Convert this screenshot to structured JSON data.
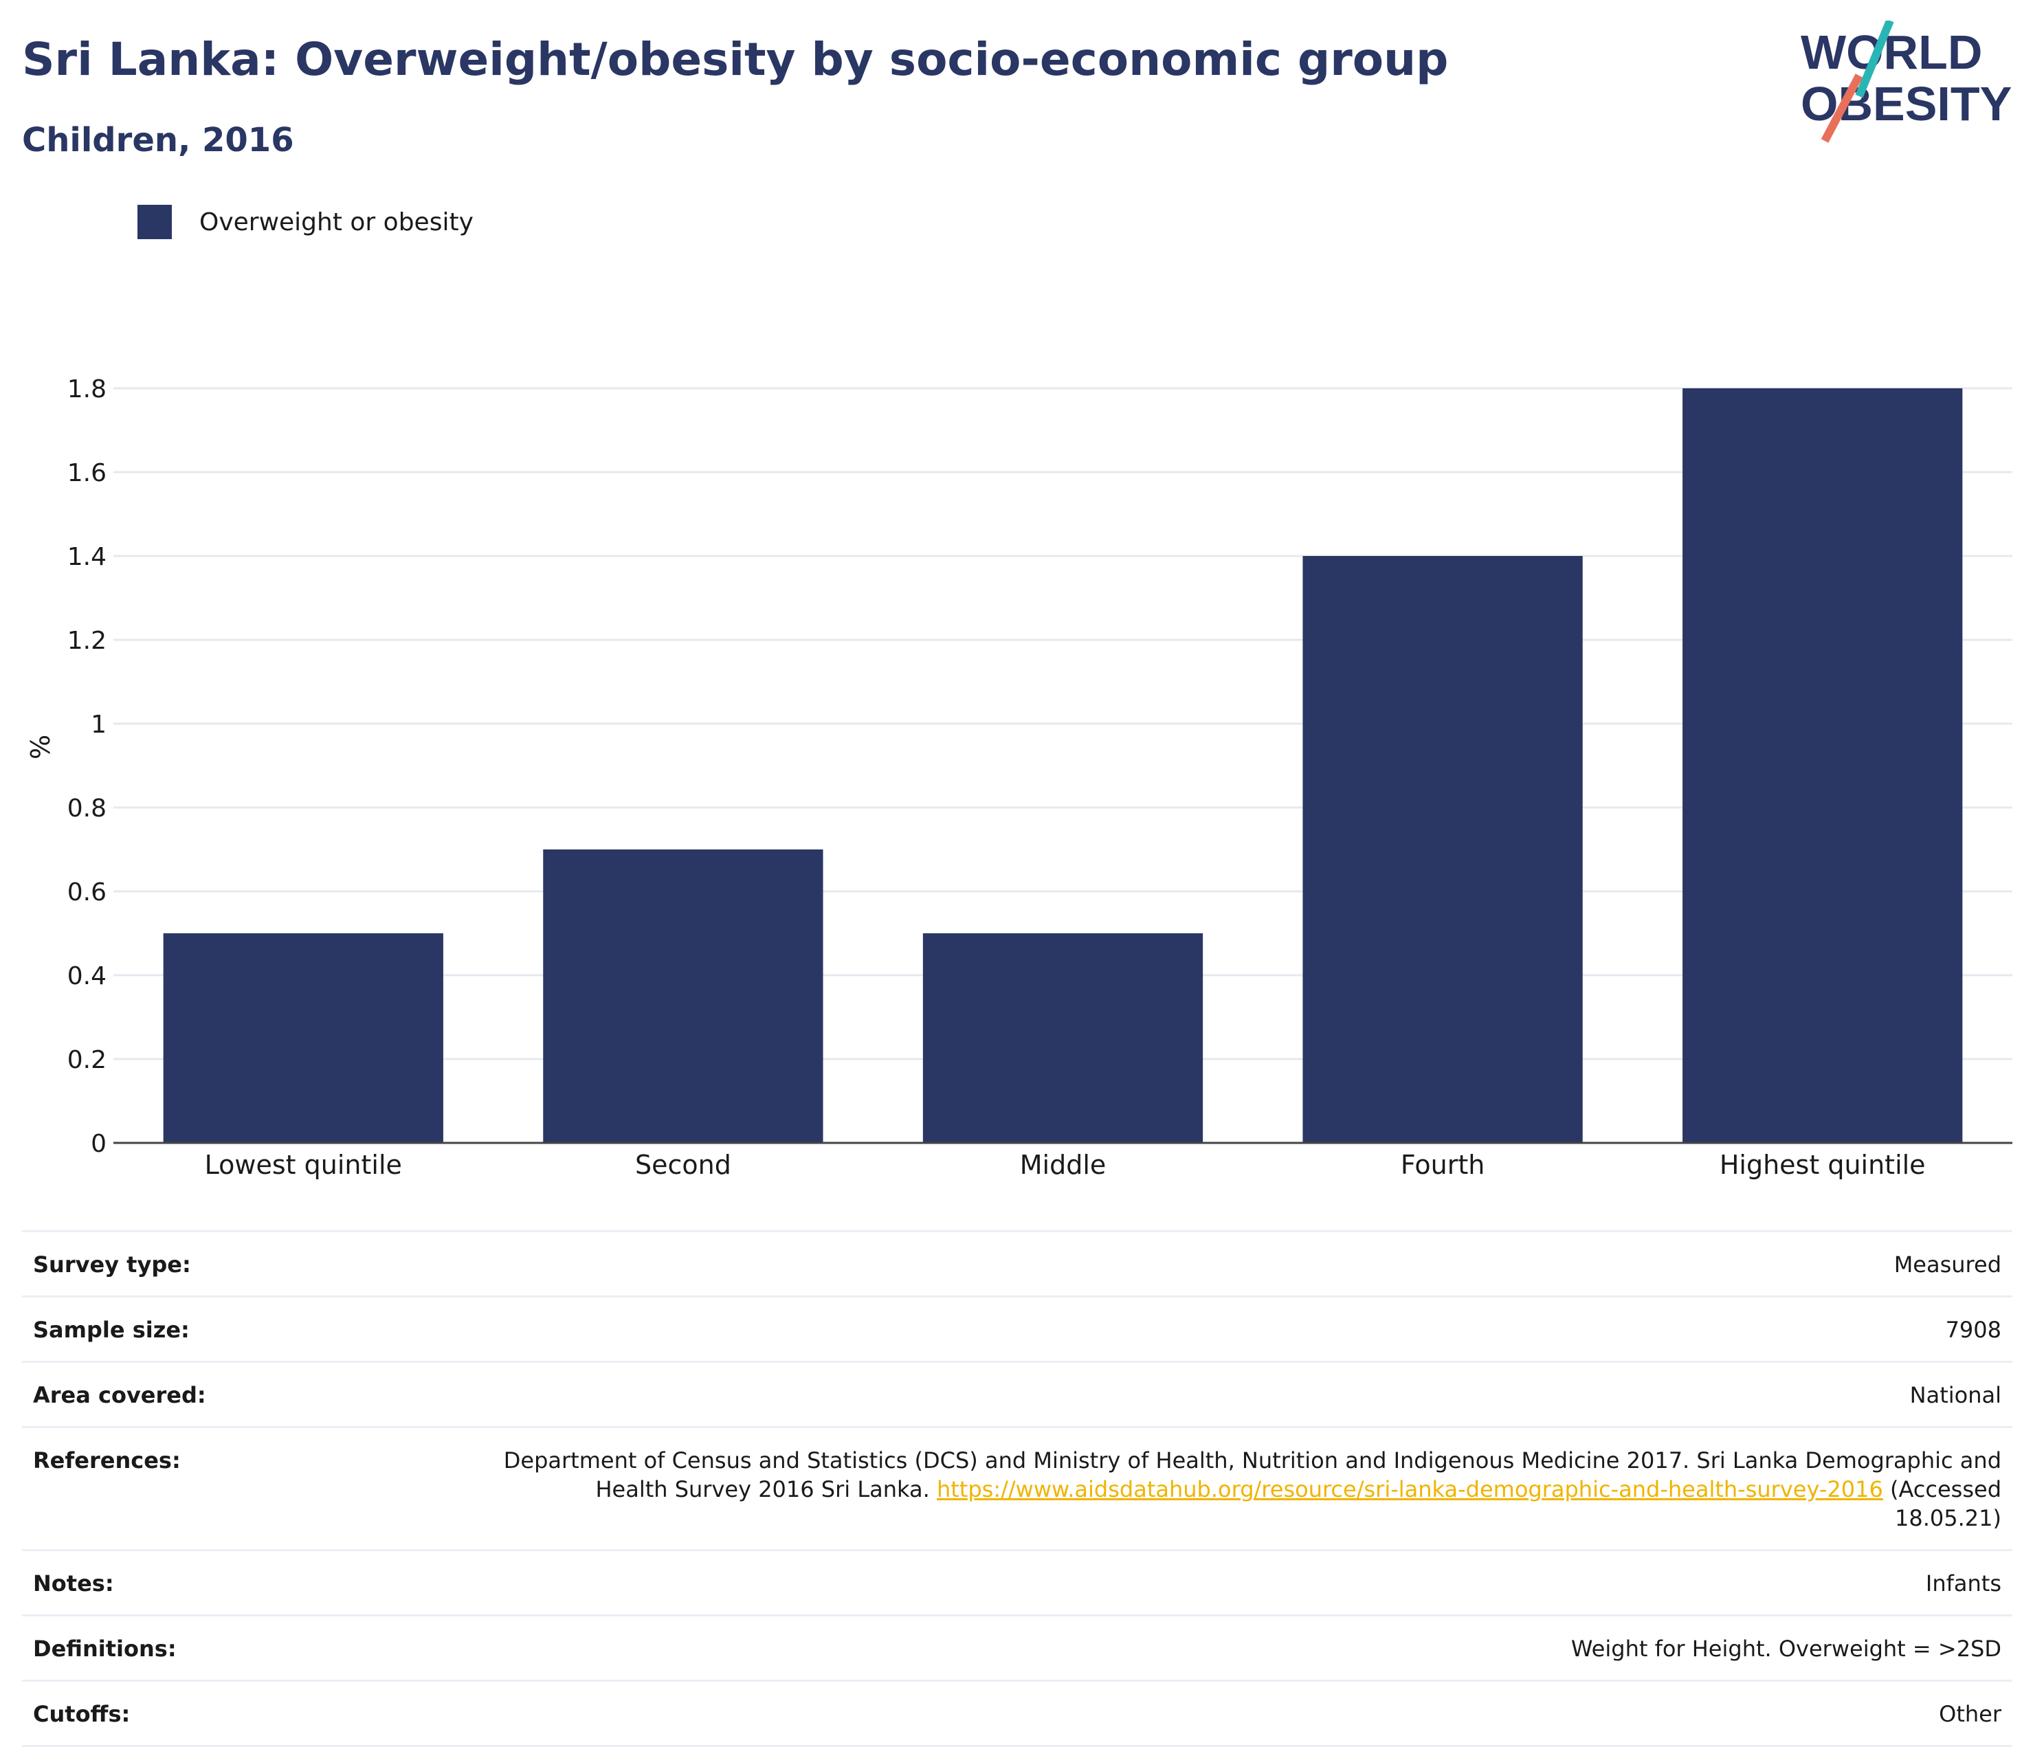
{
  "title": "Sri Lanka: Overweight/obesity by socio-economic group",
  "subtitle": "Children, 2016",
  "logo": {
    "line1": "WORLD",
    "line2": "OBESITY"
  },
  "colors": {
    "bar": "#2a3663",
    "title": "#2a3663",
    "link": "#f0b400",
    "logo_teal": "#2ab5b5",
    "logo_coral": "#e8705a"
  },
  "legend": {
    "items": [
      {
        "label": "Overweight or obesity",
        "color": "#2a3663"
      }
    ]
  },
  "chart_data": {
    "type": "bar",
    "categories": [
      "Lowest quintile",
      "Second",
      "Middle",
      "Fourth",
      "Highest quintile"
    ],
    "series": [
      {
        "name": "Overweight or obesity",
        "values": [
          0.5,
          0.7,
          0.5,
          1.4,
          1.8
        ]
      }
    ],
    "xlabel": "",
    "ylabel": "%",
    "ylim": [
      0,
      1.8
    ],
    "yticks": [
      "0",
      "0.2",
      "0.4",
      "0.6",
      "0.8",
      "1",
      "1.2",
      "1.4",
      "1.6",
      "1.8"
    ],
    "grid": true,
    "legend_position": "top-left"
  },
  "metadata": {
    "rows": [
      {
        "key": "Survey type:",
        "value": "Measured"
      },
      {
        "key": "Sample size:",
        "value": "7908"
      },
      {
        "key": "Area covered:",
        "value": "National"
      },
      {
        "key": "References:",
        "value_before": "Department of Census and Statistics (DCS) and Ministry of Health, Nutrition and Indigenous Medicine 2017. Sri Lanka Demographic and Health Survey 2016 Sri Lanka. ",
        "link": "https://www.aidsdatahub.org/resource/sri-lanka-demographic-and-health-survey-2016",
        "value_after": " (Accessed 18.05.21)"
      },
      {
        "key": "Notes:",
        "value": "Infants"
      },
      {
        "key": "Definitions:",
        "value": "Weight for Height. Overweight = >2SD"
      },
      {
        "key": "Cutoffs:",
        "value": "Other"
      }
    ]
  }
}
